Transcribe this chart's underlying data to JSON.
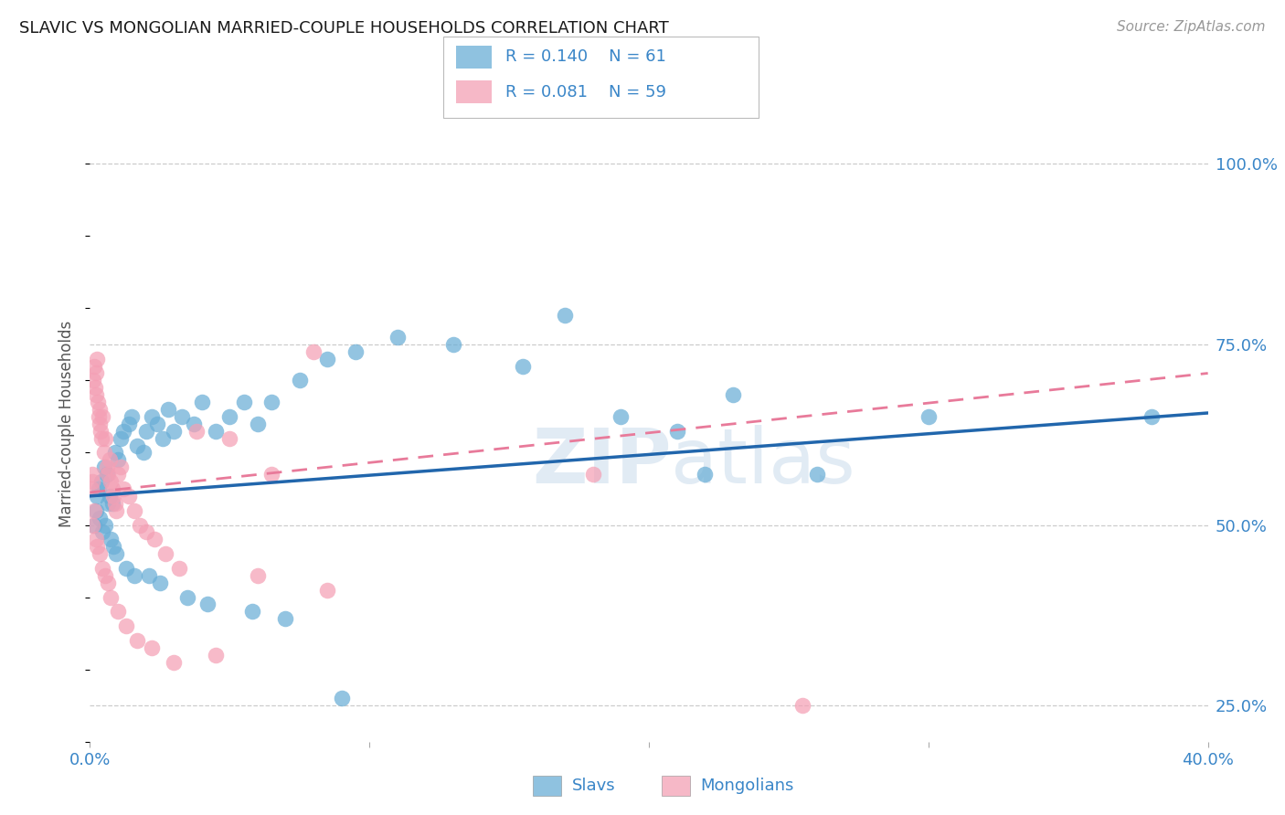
{
  "title": "SLAVIC VS MONGOLIAN MARRIED-COUPLE HOUSEHOLDS CORRELATION CHART",
  "source": "Source: ZipAtlas.com",
  "ylabel": "Married-couple Households",
  "legend_slavs_R": "R = 0.140",
  "legend_slavs_N": "N = 61",
  "legend_mongols_R": "R = 0.081",
  "legend_mongols_N": "N = 59",
  "legend_label_slavs": "Slavs",
  "legend_label_mongols": "Mongolians",
  "slavs_color": "#6aaed6",
  "mongols_color": "#f4a0b5",
  "slavs_line_color": "#2166ac",
  "mongols_line_color": "#e87a9a",
  "blue_text_color": "#3a86c8",
  "watermark_color": "#c5d8ea",
  "xlim": [
    0,
    40
  ],
  "ylim": [
    20,
    108
  ],
  "ytick_vals": [
    25,
    50,
    75,
    100
  ],
  "ytick_labels": [
    "25.0%",
    "50.0%",
    "75.0%",
    "100.0%"
  ],
  "slavs_trendline_x": [
    0,
    40
  ],
  "slavs_trendline_y": [
    54.0,
    65.5
  ],
  "mongols_trendline_x": [
    0,
    40
  ],
  "mongols_trendline_y": [
    54.5,
    71.0
  ],
  "slavs_x": [
    0.3,
    0.4,
    0.5,
    0.6,
    0.7,
    0.8,
    0.9,
    1.0,
    1.1,
    1.2,
    1.4,
    1.5,
    1.7,
    1.9,
    2.0,
    2.2,
    2.4,
    2.6,
    2.8,
    3.0,
    3.3,
    3.7,
    4.0,
    4.5,
    5.0,
    5.5,
    6.0,
    6.5,
    7.5,
    8.5,
    9.5,
    11.0,
    13.0,
    15.5,
    17.0,
    19.0,
    21.0,
    23.0,
    26.0,
    30.0,
    0.15,
    0.2,
    0.25,
    0.35,
    0.45,
    0.55,
    0.65,
    0.75,
    0.85,
    0.95,
    1.3,
    1.6,
    2.1,
    2.5,
    3.5,
    4.2,
    5.8,
    7.0,
    9.0,
    22.0,
    38.0
  ],
  "slavs_y": [
    55,
    56,
    58,
    57,
    54,
    53,
    60,
    59,
    62,
    63,
    64,
    65,
    61,
    60,
    63,
    65,
    64,
    62,
    66,
    63,
    65,
    64,
    67,
    63,
    65,
    67,
    64,
    67,
    70,
    73,
    74,
    76,
    75,
    72,
    79,
    65,
    63,
    68,
    57,
    65,
    50,
    52,
    54,
    51,
    49,
    50,
    53,
    48,
    47,
    46,
    44,
    43,
    43,
    42,
    40,
    39,
    38,
    37,
    26,
    57,
    65
  ],
  "mongols_x": [
    0.05,
    0.08,
    0.1,
    0.12,
    0.15,
    0.18,
    0.2,
    0.22,
    0.25,
    0.28,
    0.3,
    0.33,
    0.35,
    0.38,
    0.4,
    0.45,
    0.5,
    0.55,
    0.6,
    0.65,
    0.7,
    0.75,
    0.8,
    0.85,
    0.9,
    0.95,
    1.0,
    1.1,
    1.2,
    1.4,
    1.6,
    1.8,
    2.0,
    2.3,
    2.7,
    3.2,
    3.8,
    5.0,
    6.5,
    8.0,
    0.1,
    0.15,
    0.2,
    0.25,
    0.35,
    0.45,
    0.55,
    0.65,
    0.75,
    1.0,
    1.3,
    1.7,
    2.2,
    3.0,
    4.5,
    6.0,
    8.5,
    18.0,
    25.5
  ],
  "mongols_y": [
    55,
    57,
    56,
    70,
    72,
    69,
    68,
    71,
    73,
    67,
    65,
    66,
    64,
    63,
    62,
    65,
    60,
    62,
    58,
    57,
    59,
    56,
    55,
    54,
    53,
    52,
    57,
    58,
    55,
    54,
    52,
    50,
    49,
    48,
    46,
    44,
    63,
    62,
    57,
    74,
    50,
    52,
    48,
    47,
    46,
    44,
    43,
    42,
    40,
    38,
    36,
    34,
    33,
    31,
    32,
    43,
    41,
    57,
    25
  ],
  "background_color": "#ffffff"
}
